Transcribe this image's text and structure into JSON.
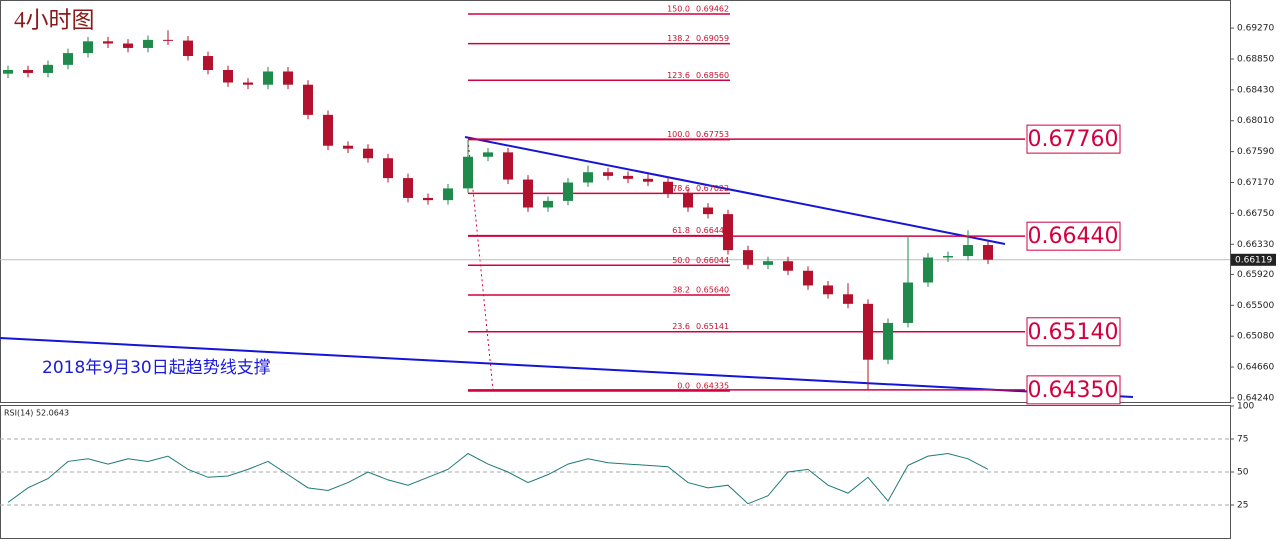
{
  "chart_data": [
    {
      "type": "candlestick",
      "title": "4小时图",
      "open": [
        0.6865,
        0.687,
        0.6866,
        0.6877,
        0.6893,
        0.6909,
        0.6906,
        0.69,
        0.6911,
        0.691,
        0.6889,
        0.687,
        0.6853,
        0.685,
        0.6868,
        0.685,
        0.6809,
        0.6767,
        0.6763,
        0.675,
        0.6723,
        0.6696,
        0.6693,
        0.6709,
        0.6752,
        0.6758,
        0.6721,
        0.6683,
        0.6692,
        0.6717,
        0.6731,
        0.6726,
        0.6722,
        0.6718,
        0.6702,
        0.6683,
        0.6674,
        0.6625,
        0.6605,
        0.661,
        0.6597,
        0.6577,
        0.6565,
        0.6552,
        0.6476,
        0.6526,
        0.6581,
        0.6615,
        0.6617,
        0.6632
      ],
      "high": [
        0.6876,
        0.6876,
        0.6883,
        0.6899,
        0.6915,
        0.6915,
        0.6912,
        0.6917,
        0.6924,
        0.6916,
        0.6895,
        0.6876,
        0.6859,
        0.6874,
        0.6874,
        0.6856,
        0.6815,
        0.6773,
        0.6769,
        0.6756,
        0.6729,
        0.6702,
        0.6715,
        0.6775,
        0.6764,
        0.6764,
        0.6727,
        0.6698,
        0.6723,
        0.674,
        0.6737,
        0.6732,
        0.6728,
        0.6724,
        0.6708,
        0.6689,
        0.668,
        0.6631,
        0.6616,
        0.6616,
        0.6603,
        0.6583,
        0.658,
        0.6558,
        0.6532,
        0.6645,
        0.6621,
        0.6623,
        0.6652,
        0.6638
      ],
      "low": [
        0.6859,
        0.686,
        0.686,
        0.6871,
        0.6887,
        0.69,
        0.6894,
        0.6894,
        0.6904,
        0.6883,
        0.6864,
        0.6847,
        0.6844,
        0.6844,
        0.6844,
        0.6803,
        0.6761,
        0.6757,
        0.6744,
        0.6717,
        0.669,
        0.6687,
        0.6687,
        0.6703,
        0.6746,
        0.6715,
        0.6677,
        0.6677,
        0.6686,
        0.6711,
        0.672,
        0.6716,
        0.6712,
        0.6696,
        0.6677,
        0.6668,
        0.6619,
        0.6599,
        0.6599,
        0.6591,
        0.6571,
        0.6559,
        0.6546,
        0.6435,
        0.647,
        0.652,
        0.6575,
        0.6609,
        0.6611,
        0.6606
      ],
      "close": [
        0.687,
        0.6866,
        0.6877,
        0.6893,
        0.6909,
        0.6906,
        0.69,
        0.6911,
        0.691,
        0.6889,
        0.687,
        0.6853,
        0.685,
        0.6868,
        0.685,
        0.6809,
        0.6767,
        0.6763,
        0.675,
        0.6723,
        0.6696,
        0.6693,
        0.6709,
        0.6752,
        0.6758,
        0.6721,
        0.6683,
        0.6692,
        0.6717,
        0.6731,
        0.6726,
        0.6722,
        0.6718,
        0.6702,
        0.6683,
        0.6674,
        0.6625,
        0.6605,
        0.661,
        0.6597,
        0.6577,
        0.6565,
        0.6552,
        0.6476,
        0.6526,
        0.6581,
        0.6615,
        0.6617,
        0.6632,
        0.6612
      ],
      "up_color": "#1f8a4c",
      "down_color": "#b3122e",
      "ylim": [
        0.64185,
        0.69652
      ],
      "yticks": [
        {
          "value": 0.6927,
          "label": "0.69270"
        },
        {
          "value": 0.6885,
          "label": "0.68850"
        },
        {
          "value": 0.6843,
          "label": "0.68430"
        },
        {
          "value": 0.6801,
          "label": "0.68010"
        },
        {
          "value": 0.6759,
          "label": "0.67590"
        },
        {
          "value": 0.6717,
          "label": "0.67170"
        },
        {
          "value": 0.6675,
          "label": "0.66750"
        },
        {
          "value": 0.6633,
          "label": "0.66330"
        },
        {
          "value": 0.6592,
          "label": "0.65920"
        },
        {
          "value": 0.655,
          "label": "0.65500"
        },
        {
          "value": 0.6508,
          "label": "0.65080"
        },
        {
          "value": 0.6466,
          "label": "0.64660"
        },
        {
          "value": 0.6424,
          "label": "0.64240"
        }
      ],
      "last_price": {
        "value": 0.66119,
        "label": "0.66119"
      },
      "fib_color": "#d3003f",
      "fib_levels": [
        {
          "ratio": "150.0",
          "price": 0.69462,
          "label": "0.69462"
        },
        {
          "ratio": "138.2",
          "price": 0.69059,
          "label": "0.69059"
        },
        {
          "ratio": "123.6",
          "price": 0.6856,
          "label": "0.68560"
        },
        {
          "ratio": "100.0",
          "price": 0.67753,
          "label": "0.67753"
        },
        {
          "ratio": "78.6",
          "price": 0.67022,
          "label": "0.67022"
        },
        {
          "ratio": "61.8",
          "price": 0.66447,
          "label": "0.66447"
        },
        {
          "ratio": "50.0",
          "price": 0.66044,
          "label": "0.66044"
        },
        {
          "ratio": "38.2",
          "price": 0.6564,
          "label": "0.65640"
        },
        {
          "ratio": "23.6",
          "price": 0.65141,
          "label": "0.65141"
        },
        {
          "ratio": "0.0",
          "price": 0.64335,
          "label": "0.64335"
        }
      ],
      "key_levels": [
        {
          "value": 0.6776,
          "label": "0.67760"
        },
        {
          "value": 0.6644,
          "label": "0.66440"
        },
        {
          "value": 0.6514,
          "label": "0.65140"
        },
        {
          "value": 0.6435,
          "label": "0.64350"
        }
      ],
      "annotation": "2018年9月30日起趋势线支撑"
    },
    {
      "type": "line",
      "title": "RSI(14) 52.0643",
      "values": [
        27,
        38,
        45,
        58,
        60,
        56,
        60,
        58,
        62,
        52,
        46,
        47,
        52,
        58,
        48,
        38,
        36,
        42,
        50,
        44,
        40,
        46,
        52,
        64,
        56,
        50,
        42,
        48,
        56,
        60,
        57,
        56,
        55,
        54,
        42,
        38,
        40,
        26,
        32,
        50,
        52,
        40,
        34,
        46,
        28,
        55,
        62,
        64,
        60,
        52.0643
      ],
      "color": "#1f7a7a",
      "ylim": [
        0,
        100
      ],
      "yticks": [
        100,
        75,
        50,
        25
      ],
      "levels": [
        75,
        50,
        25
      ]
    }
  ]
}
